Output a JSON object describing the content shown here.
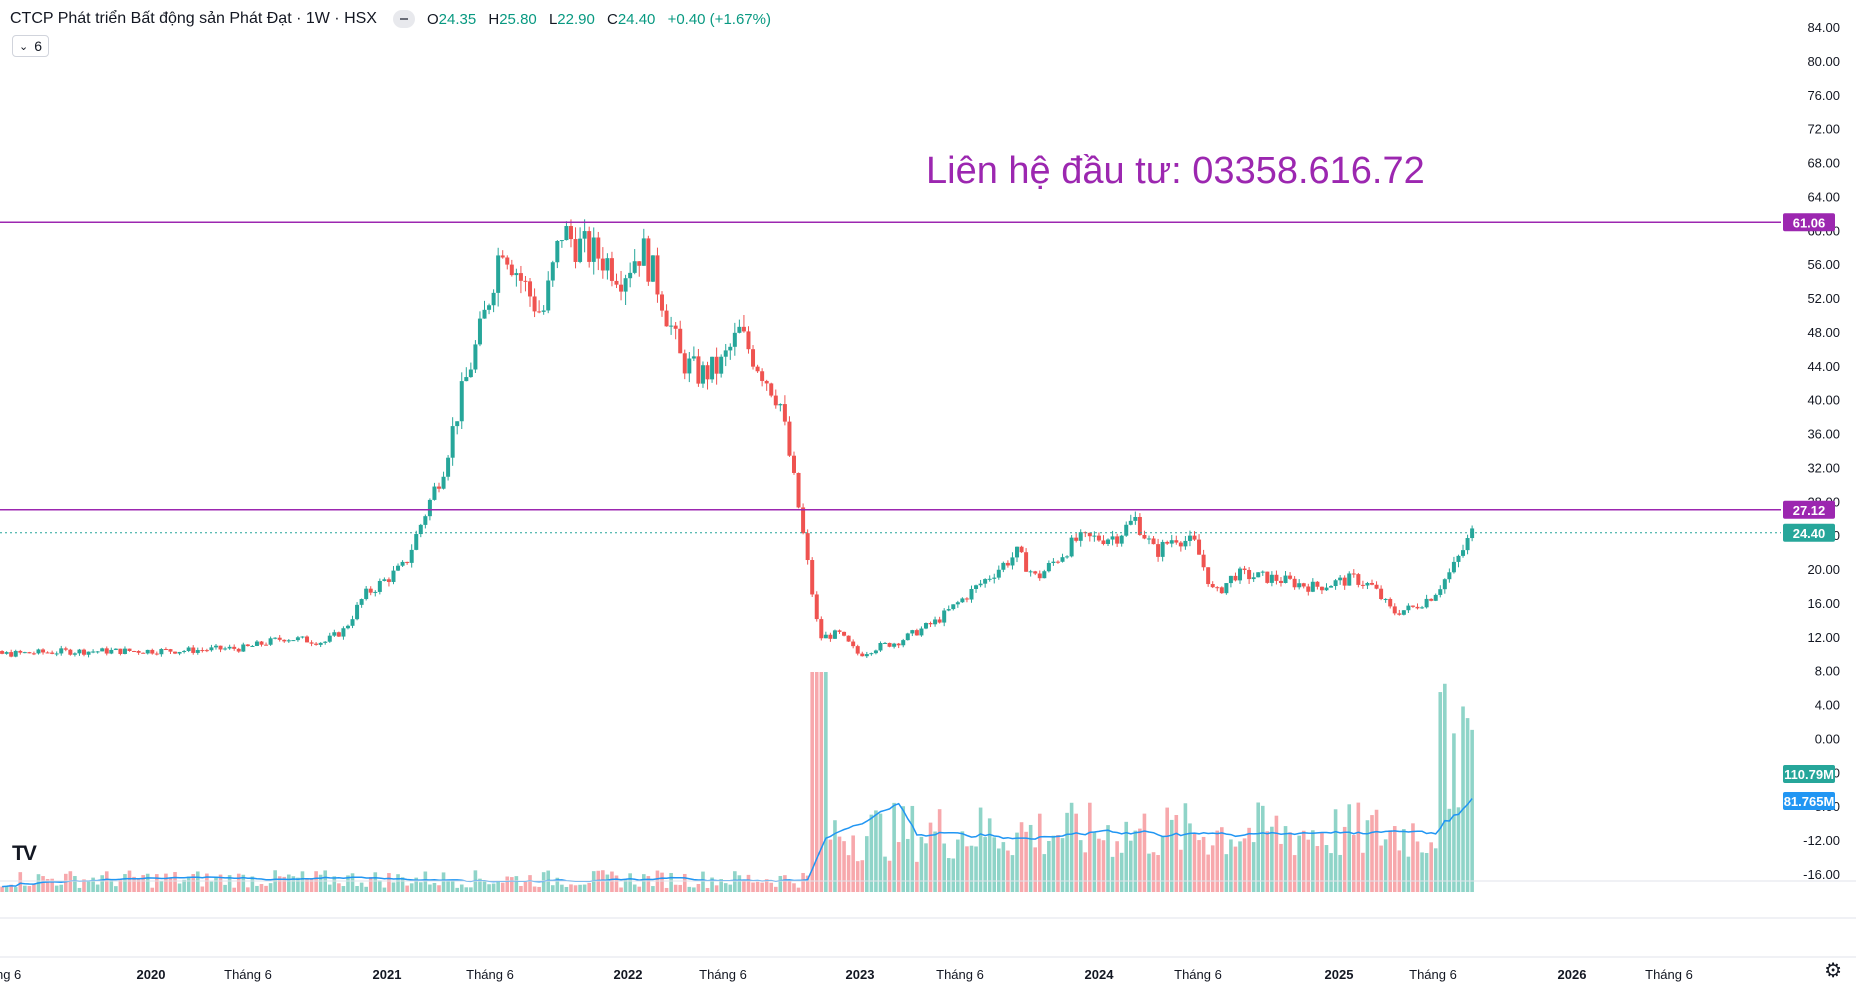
{
  "header": {
    "title": "CTCP Phát triển Bất động sản Phát Đạt · 1W · HSX",
    "ohlc": [
      {
        "key": "O",
        "value": "24.35"
      },
      {
        "key": "H",
        "value": "25.80"
      },
      {
        "key": "L",
        "value": "22.90"
      },
      {
        "key": "C",
        "value": "24.40"
      }
    ],
    "change": "+0.40 (+1.67%)",
    "collapse_count": "6"
  },
  "annotation": "Liên hệ đầu tư: 03358.616.72",
  "colors": {
    "up": "#26a69a",
    "down": "#ef5350",
    "volume_up": "#8fd4c8",
    "volume_down": "#f7a8ac",
    "level_line": "#9c27b0",
    "ma": "#2196f3"
  },
  "chart_data": {
    "type": "candlestick",
    "title": "",
    "price_axis": {
      "ticks": [
        "84.00",
        "80.00",
        "76.00",
        "72.00",
        "68.00",
        "64.00",
        "60.00",
        "56.00",
        "52.00",
        "48.00",
        "44.00",
        "40.00",
        "36.00",
        "32.00",
        "28.00",
        "24.00",
        "20.00",
        "16.00",
        "12.00",
        "8.00",
        "4.00",
        "0.00",
        "-4.00",
        "-8.00",
        "-12.00",
        "-16.00"
      ],
      "range": [
        -16,
        86
      ]
    },
    "time_axis": {
      "labels": [
        "áng 6",
        "2020",
        "Tháng 6",
        "2021",
        "Tháng 6",
        "2022",
        "Tháng 6",
        "2023",
        "Tháng 6",
        "2024",
        "Tháng 6",
        "2025",
        "Tháng 6",
        "2026",
        "Tháng 6"
      ],
      "bold_labels": [
        "2020",
        "2021",
        "2022",
        "2023",
        "2024",
        "2025",
        "2026"
      ]
    },
    "levels": [
      {
        "value": 61.06,
        "label": "61.06"
      },
      {
        "value": 27.12,
        "label": "27.12"
      }
    ],
    "last_price": {
      "value": 24.4,
      "label": "24.40"
    },
    "volume_labels": [
      {
        "label": "110.79M",
        "role": "volume"
      },
      {
        "label": "81.765M",
        "role": "volume-ma"
      }
    ],
    "price_path": [
      {
        "date": "2019-03",
        "close": 9.8
      },
      {
        "date": "2019-09",
        "close": 10.4
      },
      {
        "date": "2020-03",
        "close": 10.5
      },
      {
        "date": "2020-06",
        "close": 10.8
      },
      {
        "date": "2020-08",
        "close": 12.0
      },
      {
        "date": "2020-10",
        "close": 11.5
      },
      {
        "date": "2020-11",
        "close": 13.0
      },
      {
        "date": "2020-12",
        "close": 17.0
      },
      {
        "date": "2021-02",
        "close": 20.5
      },
      {
        "date": "2021-03",
        "close": 26.0
      },
      {
        "date": "2021-04",
        "close": 32.0
      },
      {
        "date": "2021-05",
        "close": 41.0
      },
      {
        "date": "2021-06",
        "close": 49.0
      },
      {
        "date": "2021-07",
        "close": 59.0
      },
      {
        "date": "2021-08",
        "close": 54.0
      },
      {
        "date": "2021-09",
        "close": 50.0
      },
      {
        "date": "2021-10",
        "close": 60.0
      },
      {
        "date": "2021-11",
        "close": 58.0
      },
      {
        "date": "2021-12",
        "close": 57.0
      },
      {
        "date": "2022-01",
        "close": 55.0
      },
      {
        "date": "2022-02",
        "close": 58.0
      },
      {
        "date": "2022-03",
        "close": 53.0
      },
      {
        "date": "2022-04",
        "close": 45.0
      },
      {
        "date": "2022-05",
        "close": 43.0
      },
      {
        "date": "2022-06",
        "close": 44.0
      },
      {
        "date": "2022-07",
        "close": 48.0
      },
      {
        "date": "2022-08",
        "close": 44.0
      },
      {
        "date": "2022-09",
        "close": 40.0
      },
      {
        "date": "2022-10",
        "close": 27.0
      },
      {
        "date": "2022-11",
        "close": 12.0
      },
      {
        "date": "2022-12",
        "close": 12.5
      },
      {
        "date": "2023-01",
        "close": 10.0
      },
      {
        "date": "2023-02",
        "close": 11.0
      },
      {
        "date": "2023-03",
        "close": 11.5
      },
      {
        "date": "2023-05",
        "close": 14.0
      },
      {
        "date": "2023-07",
        "close": 18.0
      },
      {
        "date": "2023-09",
        "close": 22.0
      },
      {
        "date": "2023-10",
        "close": 19.0
      },
      {
        "date": "2023-12",
        "close": 23.5
      },
      {
        "date": "2024-02",
        "close": 24.0
      },
      {
        "date": "2024-03",
        "close": 26.0
      },
      {
        "date": "2024-04",
        "close": 22.0
      },
      {
        "date": "2024-05",
        "close": 24.0
      },
      {
        "date": "2024-06",
        "close": 23.0
      },
      {
        "date": "2024-07",
        "close": 17.0
      },
      {
        "date": "2024-08",
        "close": 19.5
      },
      {
        "date": "2024-10",
        "close": 19.0
      },
      {
        "date": "2024-12",
        "close": 18.0
      },
      {
        "date": "2025-02",
        "close": 19.0
      },
      {
        "date": "2025-03",
        "close": 18.0
      },
      {
        "date": "2025-04",
        "close": 15.0
      },
      {
        "date": "2025-05",
        "close": 15.5
      },
      {
        "date": "2025-06",
        "close": 17.0
      },
      {
        "date": "2025-07",
        "close": 20.0
      },
      {
        "date": "2025-08",
        "close": 24.4
      }
    ]
  }
}
